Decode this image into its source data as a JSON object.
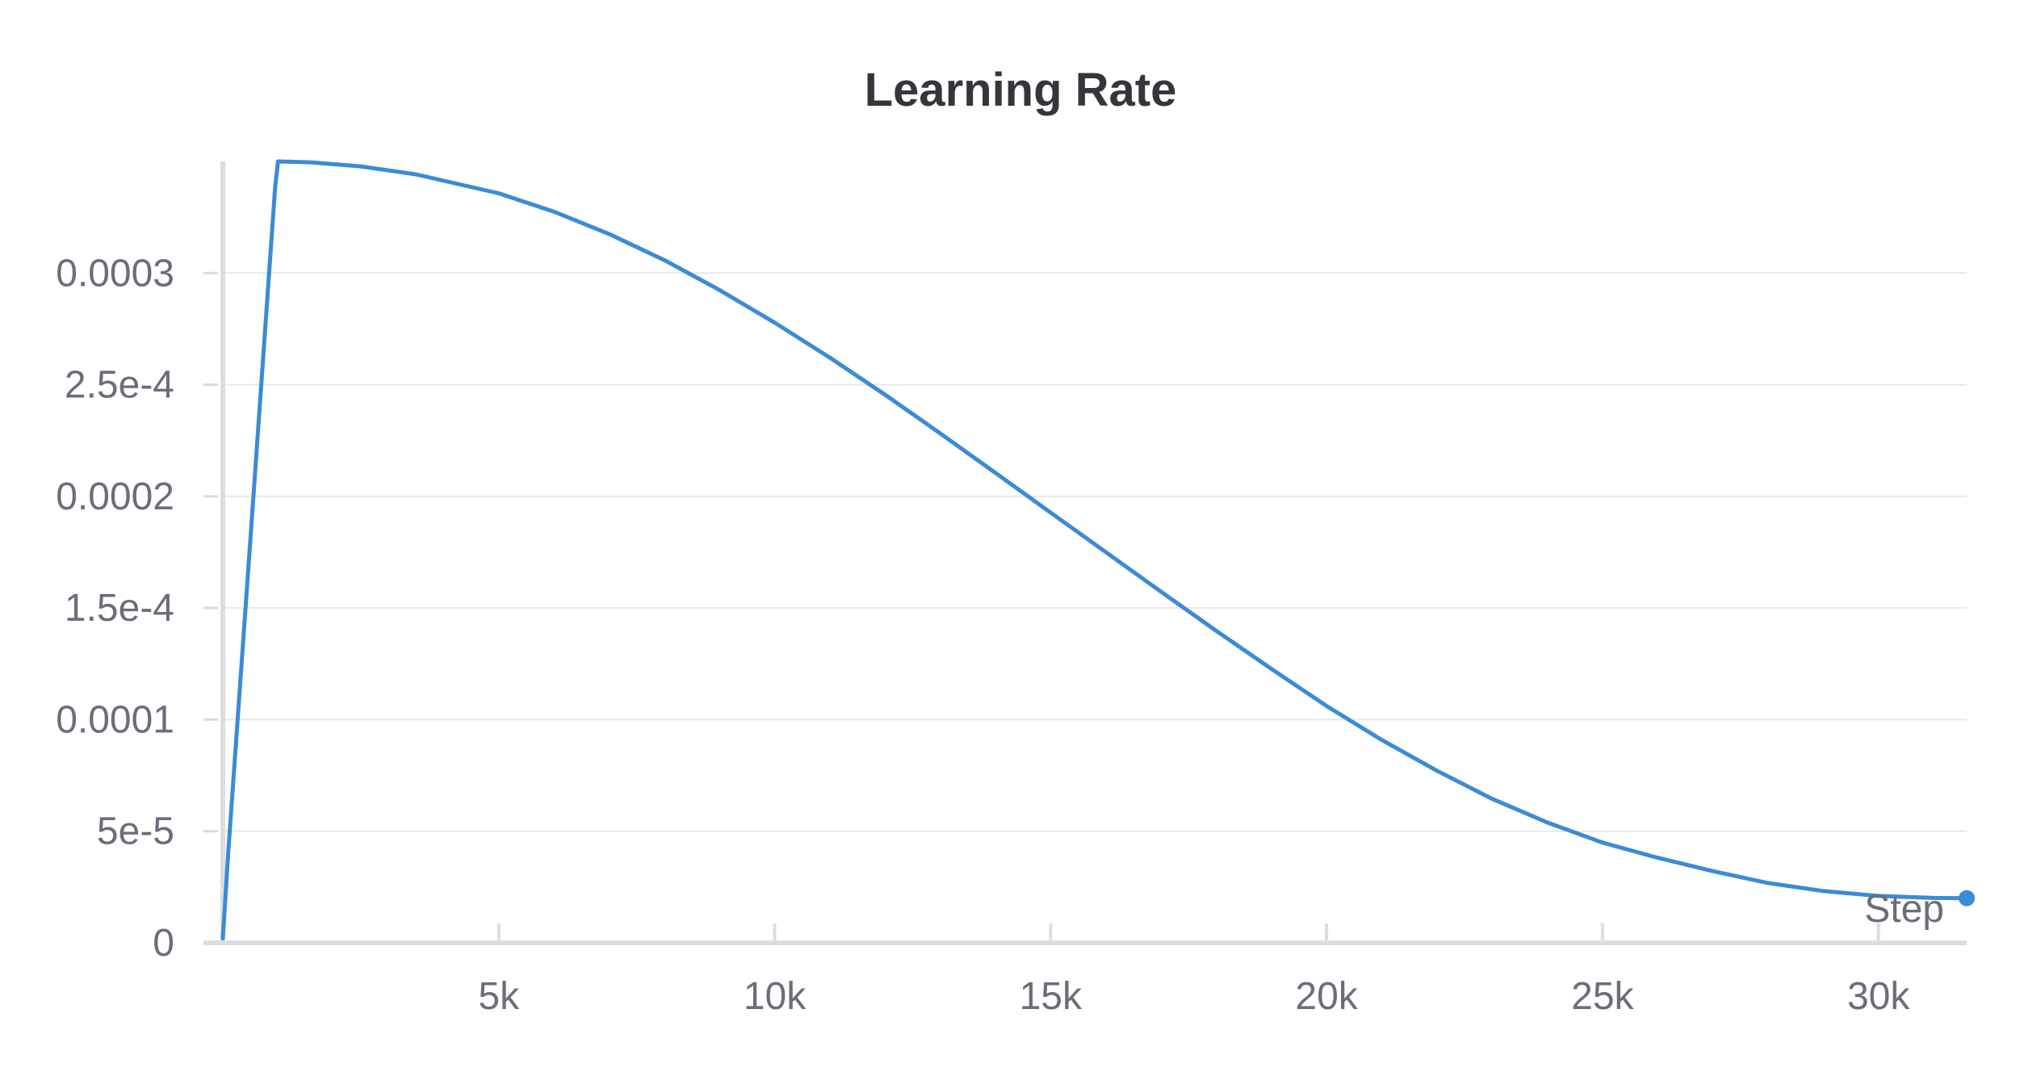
{
  "chart_data": {
    "type": "line",
    "title": "Learning Rate",
    "xlabel": "Step",
    "ylabel": "",
    "xlim": [
      0,
      31600
    ],
    "ylim": [
      0,
      0.00035
    ],
    "x_ticks": [
      5000,
      10000,
      15000,
      20000,
      25000,
      30000
    ],
    "x_tick_labels": [
      "5k",
      "10k",
      "15k",
      "20k",
      "25k",
      "30k"
    ],
    "y_ticks": [
      0,
      5e-05,
      0.0001,
      0.00015,
      0.0002,
      0.00025,
      0.0003
    ],
    "y_tick_labels": [
      "0",
      "5e-5",
      "0.0001",
      "1.5e-4",
      "0.0002",
      "2.5e-4",
      "0.0003"
    ],
    "grid": true,
    "legend": "none",
    "line_color": "#3b8bd6",
    "series": [
      {
        "x": [
          0,
          100,
          500,
          950,
          1000,
          1600,
          2500,
          3500,
          5000,
          6000,
          7000,
          8000,
          9000,
          10000,
          11000,
          12000,
          13000,
          14000,
          15000,
          16000,
          17000,
          18000,
          19000,
          20000,
          21000,
          22000,
          23000,
          24000,
          25000,
          26000,
          27000,
          28000,
          29000,
          30000,
          31000,
          31600
        ],
        "y": [
          2e-06,
          4.1e-05,
          0.000181,
          0.000339,
          0.00035,
          0.0003496,
          0.0003478,
          0.0003442,
          0.0003357,
          0.0003275,
          0.0003175,
          0.0003058,
          0.0002924,
          0.0002778,
          0.0002621,
          0.0002455,
          0.0002282,
          0.0002105,
          0.0001927,
          0.000175,
          0.0001573,
          0.0001398,
          0.0001227,
          0.0001061,
          9.09e-05,
          7.71e-05,
          6.45e-05,
          5.39e-05,
          4.49e-05,
          3.81e-05,
          3.21e-05,
          2.68e-05,
          2.32e-05,
          2.1e-05,
          2.01e-05,
          2e-05
        ]
      }
    ]
  }
}
